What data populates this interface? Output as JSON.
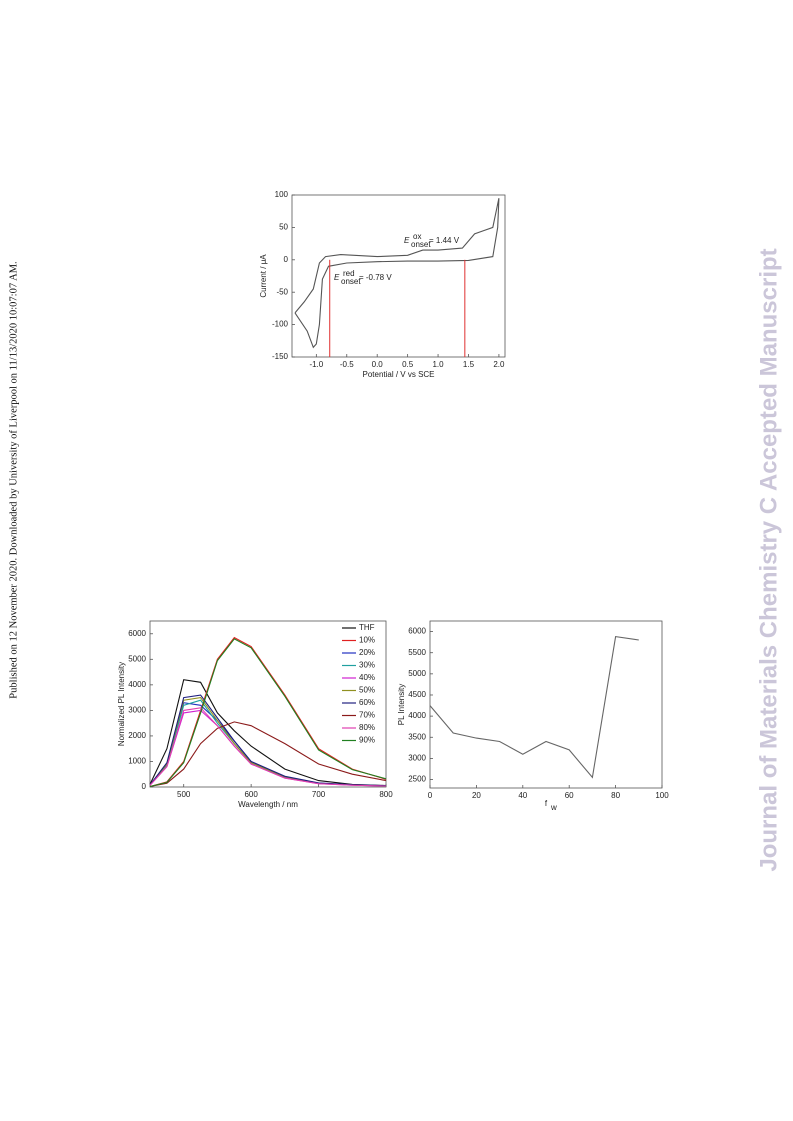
{
  "side_note": "Published on 12 November 2020. Downloaded by University of Liverpool on 11/13/2020 10:07:07 AM.",
  "watermark": "Journal of Materials Chemistry C Accepted Manuscript",
  "chart_data": [
    {
      "type": "line",
      "xlabel": "Potential / V vs SCE",
      "ylabel": "Current / μA",
      "xlim": [
        -1.4,
        2.1
      ],
      "ylim": [
        -150,
        100
      ],
      "xticks": [
        {
          "value": -1,
          "label": "-1.0"
        },
        {
          "value": -0.5,
          "label": "-0.5"
        },
        {
          "value": 0,
          "label": "0.0"
        },
        {
          "value": 0.5,
          "label": "0.5"
        },
        {
          "value": 1,
          "label": "1.0"
        },
        {
          "value": 1.5,
          "label": "1.5"
        },
        {
          "value": 2,
          "label": "2.0"
        }
      ],
      "yticks": [
        100,
        50,
        0,
        -50,
        -100,
        -150
      ],
      "color": "#555555",
      "x": [
        -1.35,
        -1.2,
        -1.05,
        -0.95,
        -0.85,
        -0.6,
        0,
        0.5,
        0.75,
        1.0,
        1.4,
        1.6,
        1.75,
        1.9,
        2.0,
        1.98,
        1.9,
        1.5,
        1.0,
        0.5,
        0,
        -0.5,
        -0.8,
        -0.9,
        -0.95,
        -1.0,
        -1.05,
        -1.15,
        -1.35
      ],
      "values": [
        -82,
        -65,
        -45,
        -5,
        5,
        8,
        5,
        7,
        15,
        15,
        18,
        40,
        45,
        50,
        95,
        50,
        5,
        -1,
        -2,
        -2,
        -3,
        -5,
        -10,
        -30,
        -100,
        -130,
        -135,
        -110,
        -82
      ],
      "onset_lines": [
        -0.78,
        1.44
      ],
      "onset_color": "#e03030",
      "annotations": [
        {
          "symbol": "E",
          "sup": "ox",
          "sub": "onset",
          "text": "= 1.44 V"
        },
        {
          "symbol": "E",
          "sup": "red",
          "sub": "onset",
          "text": "= -0.78 V"
        }
      ]
    },
    {
      "type": "line",
      "xlabel": "Wavelength / nm",
      "ylabel": "Normalized PL Intensity",
      "xlim": [
        450,
        800
      ],
      "ylim": [
        0,
        6500
      ],
      "xticks": [
        500,
        600,
        700,
        800
      ],
      "yticks": [
        0,
        1000,
        2000,
        3000,
        4000,
        5000,
        6000
      ],
      "legend": "upper right",
      "x": [
        450,
        475,
        500,
        525,
        550,
        575,
        600,
        650,
        700,
        750,
        800
      ],
      "series": [
        {
          "name": "THF",
          "color": "#111111",
          "values": [
            100,
            1500,
            4200,
            4100,
            2900,
            2200,
            1600,
            700,
            250,
            100,
            60
          ]
        },
        {
          "name": "10%",
          "color": "#e02020",
          "values": [
            20,
            200,
            1000,
            3000,
            5000,
            5850,
            5500,
            3600,
            1500,
            700,
            300
          ]
        },
        {
          "name": "20%",
          "color": "#2030c0",
          "values": [
            80,
            900,
            3300,
            3200,
            2600,
            1800,
            1000,
            400,
            150,
            80,
            50
          ]
        },
        {
          "name": "30%",
          "color": "#20a0a0",
          "values": [
            80,
            850,
            3200,
            3400,
            2500,
            1700,
            950,
            380,
            140,
            80,
            50
          ]
        },
        {
          "name": "40%",
          "color": "#d020d0",
          "values": [
            70,
            800,
            2900,
            3000,
            2400,
            1600,
            900,
            350,
            130,
            70,
            40
          ]
        },
        {
          "name": "50%",
          "color": "#909020",
          "values": [
            80,
            900,
            3400,
            3500,
            2600,
            1700,
            950,
            400,
            150,
            80,
            50
          ]
        },
        {
          "name": "60%",
          "color": "#202080",
          "values": [
            80,
            950,
            3500,
            3600,
            2700,
            1800,
            1000,
            420,
            160,
            90,
            50
          ]
        },
        {
          "name": "70%",
          "color": "#8b1a1a",
          "values": [
            20,
            150,
            700,
            1700,
            2300,
            2550,
            2400,
            1700,
            900,
            500,
            250
          ]
        },
        {
          "name": "80%",
          "color": "#e040b0",
          "values": [
            70,
            800,
            3000,
            3100,
            2400,
            1600,
            900,
            350,
            130,
            70,
            40
          ]
        },
        {
          "name": "90%",
          "color": "#208020",
          "values": [
            20,
            180,
            950,
            2900,
            4950,
            5800,
            5450,
            3550,
            1450,
            680,
            320
          ]
        }
      ]
    },
    {
      "type": "line",
      "xlabel": {
        "text": "f",
        "sub": "w"
      },
      "ylabel": "PL Intensity",
      "xlim": [
        0,
        100
      ],
      "ylim": [
        2300,
        6250
      ],
      "xticks": [
        0,
        20,
        40,
        60,
        80,
        100
      ],
      "yticks": [
        2500,
        3000,
        3500,
        4000,
        4500,
        5000,
        5500,
        6000
      ],
      "color": "#666666",
      "x": [
        0,
        10,
        20,
        30,
        40,
        50,
        60,
        70,
        80,
        90
      ],
      "values": [
        4250,
        3600,
        3480,
        3400,
        3100,
        3400,
        3200,
        2550,
        5880,
        5800
      ]
    }
  ]
}
